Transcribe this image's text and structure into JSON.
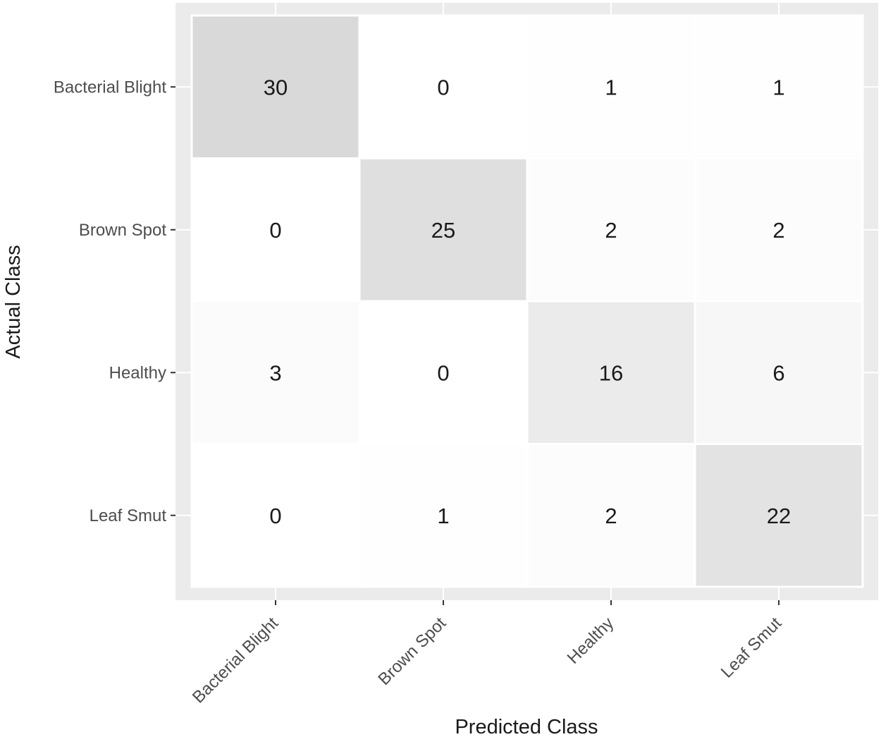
{
  "chart_data": {
    "type": "heatmap",
    "title": "",
    "xlabel": "Predicted Class",
    "ylabel": "Actual Class",
    "x_categories": [
      "Bacterial Blight",
      "Brown Spot",
      "Healthy",
      "Leaf Smut"
    ],
    "y_categories": [
      "Bacterial Blight",
      "Brown Spot",
      "Healthy",
      "Leaf Smut"
    ],
    "matrix": [
      [
        30,
        0,
        1,
        1
      ],
      [
        0,
        25,
        2,
        2
      ],
      [
        3,
        0,
        16,
        6
      ],
      [
        0,
        1,
        2,
        22
      ]
    ],
    "grid": true,
    "legend": "none",
    "colors": {
      "panel_background": "#ebebeb",
      "gridline": "#ffffff",
      "cell_low": "#ffffff",
      "cell_high": "#d9d9d9",
      "text": "#1a1a1a",
      "tick_text": "#4d4d4d"
    }
  }
}
